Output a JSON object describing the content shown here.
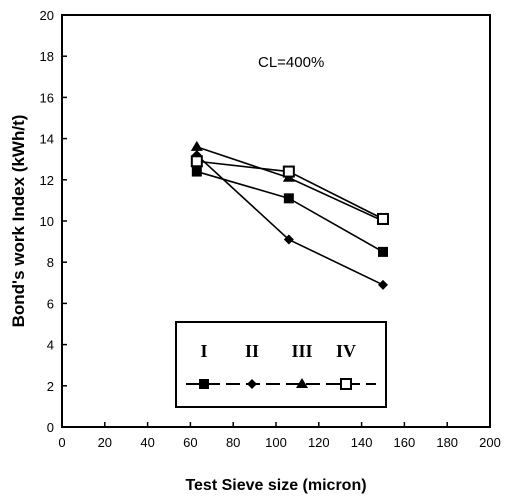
{
  "chart_data": {
    "type": "line",
    "title": "",
    "annotation": "CL=400%",
    "xlabel": "Test Sieve size (micron)",
    "ylabel": "Bond's work Index (kWh/t)",
    "xlim": [
      0,
      200
    ],
    "ylim": [
      0,
      20
    ],
    "xticks": [
      0,
      20,
      40,
      60,
      80,
      100,
      120,
      140,
      160,
      180,
      200
    ],
    "yticks": [
      0,
      2,
      4,
      6,
      8,
      10,
      12,
      14,
      16,
      18,
      20
    ],
    "grid": false,
    "legend_position": "bottom-center",
    "series": [
      {
        "name": "I",
        "marker": "filled-square",
        "x": [
          63,
          106,
          150
        ],
        "y": [
          12.4,
          11.1,
          8.5
        ]
      },
      {
        "name": "II",
        "marker": "filled-diamond",
        "x": [
          63,
          106,
          150
        ],
        "y": [
          13.2,
          9.1,
          6.9
        ]
      },
      {
        "name": "III",
        "marker": "triangle",
        "x": [
          63,
          106,
          150
        ],
        "y": [
          13.6,
          12.1,
          10.0
        ]
      },
      {
        "name": "IV",
        "marker": "open-square",
        "x": [
          63,
          106,
          150
        ],
        "y": [
          12.9,
          12.4,
          10.1
        ]
      }
    ]
  }
}
